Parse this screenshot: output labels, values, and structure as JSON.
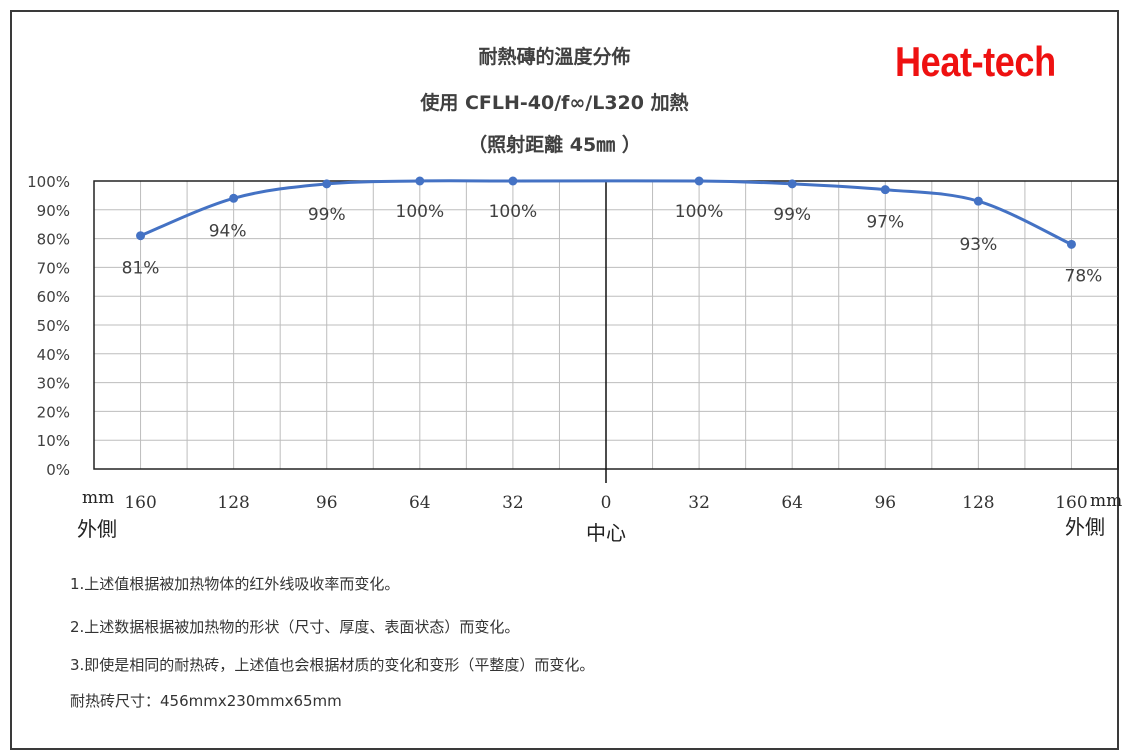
{
  "title_line1": "耐熱磚的溫度分佈",
  "title_line2": "使用 CFLH-40/f∞/L320 加熱",
  "title_line3": "（照射距離 45㎜ ）",
  "brand": "Heat-tech",
  "x_unit_left": "mm",
  "x_unit_right": "mm",
  "x_side_left": "外側",
  "x_side_right": "外側",
  "x_center": "中心",
  "chart_data": {
    "type": "line",
    "title": "耐熱磚的溫度分佈",
    "subtitle": "使用 CFLH-40/f∞/L320 加熱（照射距離 45㎜ ）",
    "x_ticks": [
      "160",
      "128",
      "96",
      "64",
      "32",
      "0",
      "32",
      "64",
      "96",
      "128",
      "160"
    ],
    "x": [
      -160,
      -128,
      -96,
      -64,
      -32,
      32,
      64,
      96,
      128,
      160
    ],
    "y_ticks": [
      "0%",
      "10%",
      "20%",
      "30%",
      "40%",
      "50%",
      "60%",
      "70%",
      "80%",
      "90%",
      "100%"
    ],
    "ylim": [
      0,
      100
    ],
    "xlim": [
      -176,
      176
    ],
    "series": [
      {
        "values": [
          81,
          94,
          99,
          100,
          100,
          100,
          99,
          97,
          93,
          78
        ],
        "labels": [
          "81%",
          "94%",
          "99%",
          "100%",
          "100%",
          "100%",
          "99%",
          "97%",
          "93%",
          "78%"
        ],
        "color": "#4472c4"
      }
    ],
    "grid": true
  },
  "notes": [
    "1.上述值根据被加热物体的红外线吸收率而变化。",
    "2.上述数据根据被加热物的形状（尺寸、厚度、表面状态）而变化。",
    "3.即使是相同的耐热砖，上述值也会根据材质的变化和变形（平整度）而变化。",
    "耐热砖尺寸：456mmx230mmx65mm"
  ]
}
